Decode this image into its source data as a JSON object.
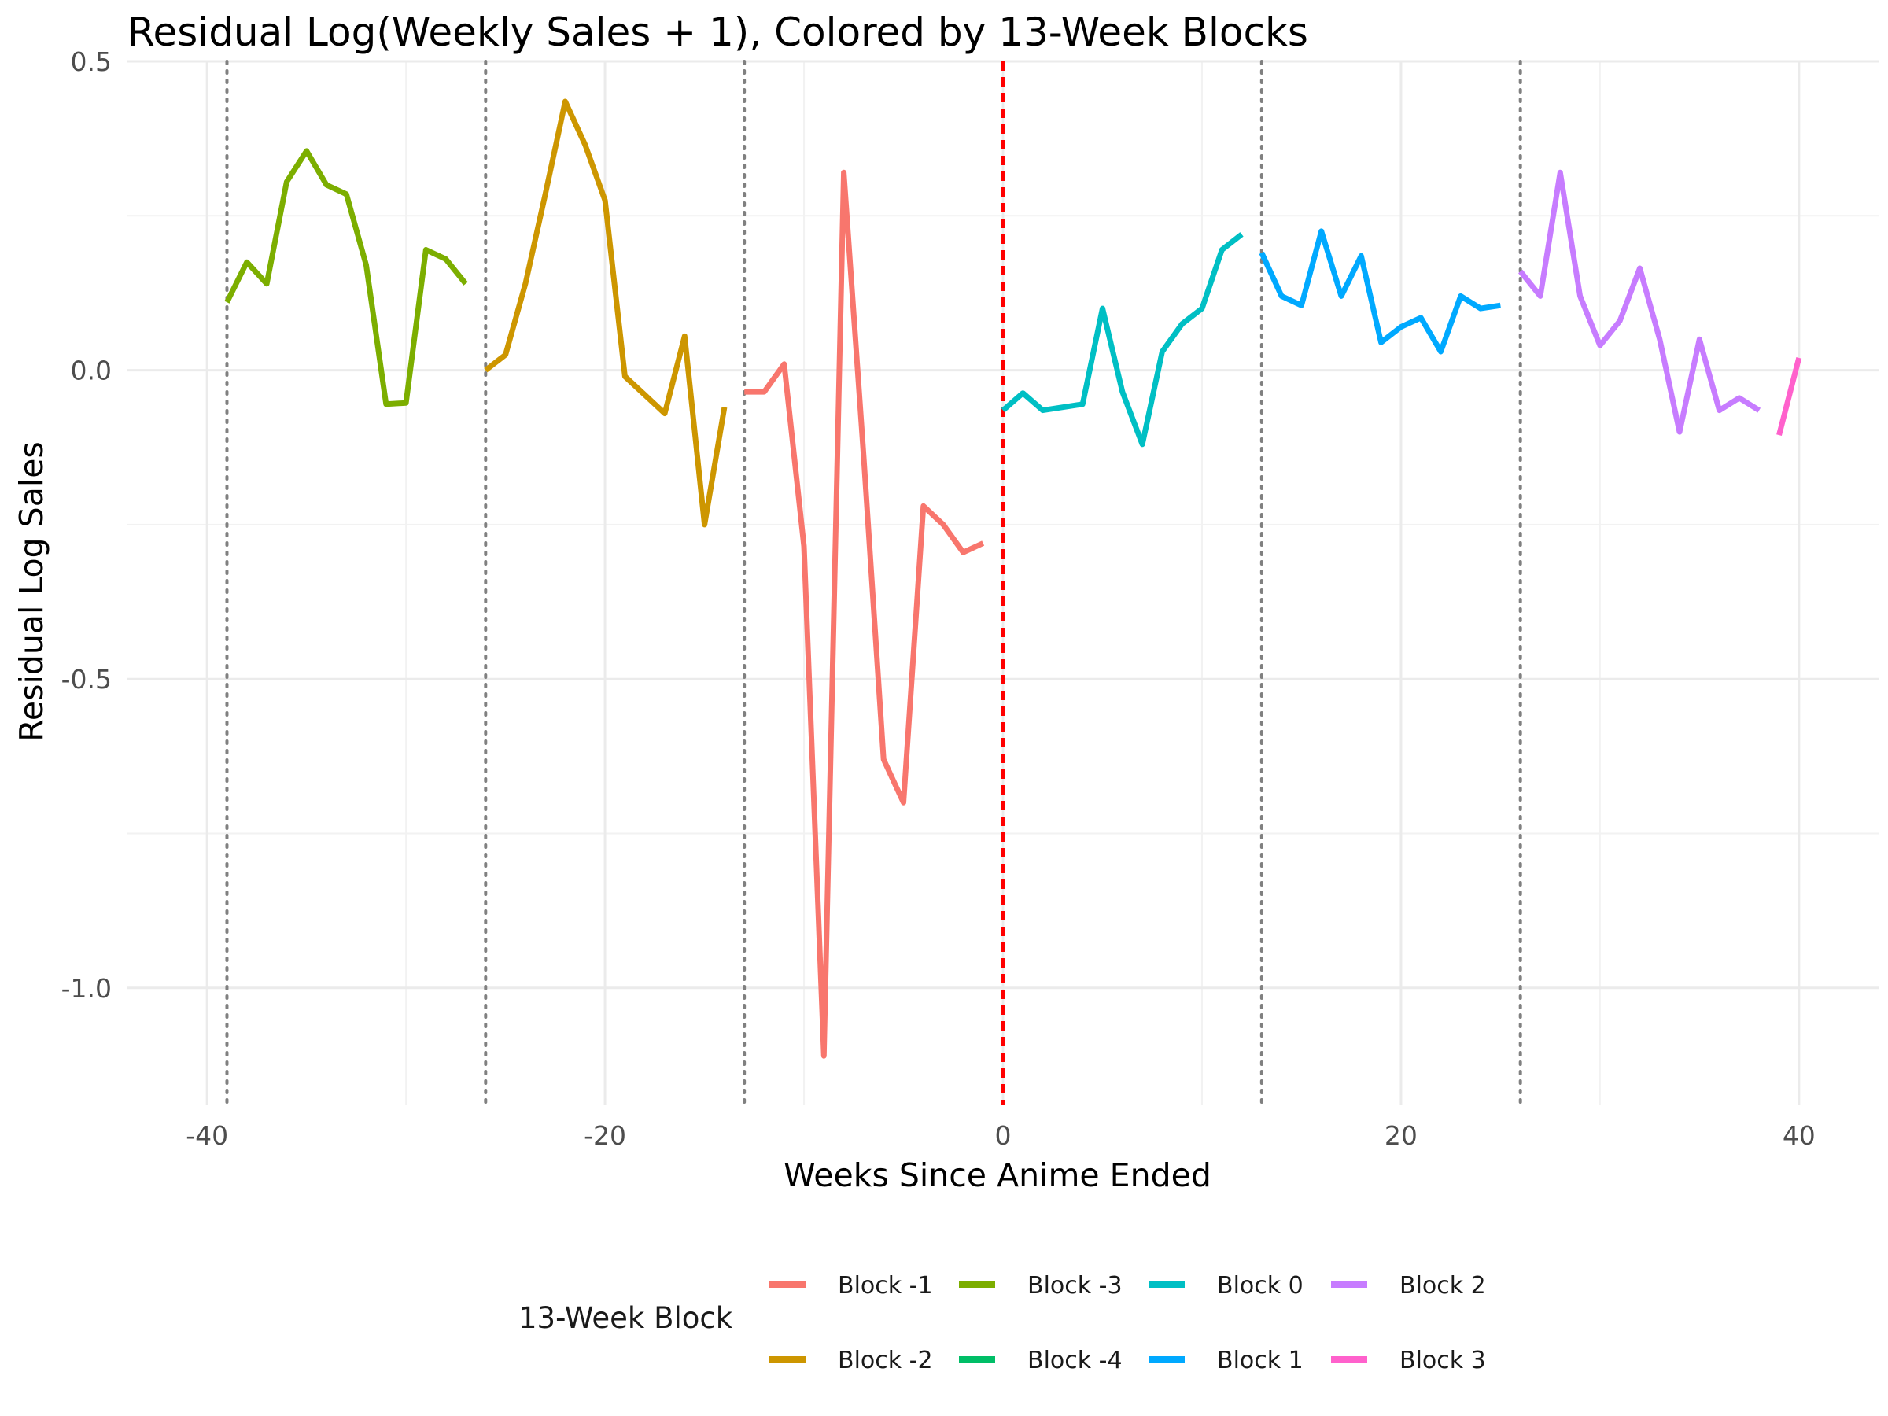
{
  "chart_data": {
    "type": "line",
    "title": "Residual Log(Weekly Sales + 1), Colored by 13-Week Blocks",
    "xlabel": "Weeks Since Anime Ended",
    "ylabel": "Residual Log Sales",
    "xlim": [
      -44,
      44
    ],
    "ylim": [
      -1.19,
      0.5
    ],
    "x_ticks": [
      -40,
      -20,
      0,
      20,
      40
    ],
    "x_tick_labels": [
      "-40",
      "-20",
      "0",
      "20",
      "40"
    ],
    "y_ticks": [
      0.5,
      0.0,
      -0.5,
      -1.0
    ],
    "y_tick_labels": [
      "0.5",
      "0.0",
      "-0.5",
      "-1.0"
    ],
    "grid": true,
    "block_boundaries": [
      -39,
      -26,
      -13,
      13,
      26
    ],
    "reference_line": 0,
    "legend": {
      "title": "13-Week Block",
      "position": "bottom",
      "order": [
        "Block -1",
        "Block -3",
        "Block 0",
        "Block 2",
        "Block -2",
        "Block -4",
        "Block 1",
        "Block 3"
      ]
    },
    "series": [
      {
        "name": "Block -3",
        "color": "#7CAE00",
        "x": [
          -39,
          -38,
          -37,
          -36,
          -35,
          -34,
          -33,
          -32,
          -31,
          -30,
          -29,
          -28,
          -27
        ],
        "y": [
          0.11,
          0.175,
          0.14,
          0.305,
          0.355,
          0.3,
          0.285,
          0.17,
          -0.055,
          -0.053,
          0.195,
          0.18,
          0.14
        ]
      },
      {
        "name": "Block -2",
        "color": "#CD9600",
        "x": [
          -26,
          -25,
          -24,
          -23,
          -22,
          -21,
          -20,
          -19,
          -18,
          -17,
          -16,
          -15,
          -14
        ],
        "y": [
          0.0,
          0.025,
          0.14,
          0.285,
          0.435,
          0.365,
          0.275,
          -0.01,
          -0.04,
          -0.07,
          0.055,
          -0.25,
          -0.06
        ]
      },
      {
        "name": "Block -1",
        "color": "#F8766D",
        "x": [
          -13,
          -12,
          -11,
          -10,
          -9,
          -8,
          -7,
          -6,
          -5,
          -4,
          -3,
          -2,
          -1
        ],
        "y": [
          -0.035,
          -0.035,
          0.01,
          -0.285,
          -1.11,
          0.32,
          -0.14,
          -0.63,
          -0.7,
          -0.22,
          -0.25,
          -0.295,
          -0.28
        ]
      },
      {
        "name": "Block -4",
        "color": "#00BE67",
        "x": [],
        "y": []
      },
      {
        "name": "Block 0",
        "color": "#00BFC4",
        "x": [
          0,
          1,
          2,
          3,
          4,
          5,
          6,
          7,
          8,
          9,
          10,
          11,
          12
        ],
        "y": [
          -0.065,
          -0.037,
          -0.065,
          -0.06,
          -0.055,
          0.1,
          -0.035,
          -0.12,
          0.03,
          0.075,
          0.1,
          0.195,
          0.22
        ]
      },
      {
        "name": "Block 1",
        "color": "#00A9FF",
        "x": [
          13,
          14,
          15,
          16,
          17,
          18,
          19,
          20,
          21,
          22,
          23,
          24,
          25
        ],
        "y": [
          0.19,
          0.12,
          0.105,
          0.225,
          0.12,
          0.185,
          0.045,
          0.07,
          0.085,
          0.03,
          0.12,
          0.1,
          0.105
        ]
      },
      {
        "name": "Block 2",
        "color": "#C77CFF",
        "x": [
          26,
          27,
          28,
          29,
          30,
          31,
          32,
          33,
          34,
          35,
          36,
          37,
          38
        ],
        "y": [
          0.16,
          0.12,
          0.32,
          0.12,
          0.04,
          0.08,
          0.165,
          0.05,
          -0.1,
          0.05,
          -0.065,
          -0.045,
          -0.065
        ]
      },
      {
        "name": "Block 3",
        "color": "#FF61CC",
        "x": [
          39,
          40
        ],
        "y": [
          -0.105,
          0.02
        ]
      }
    ]
  },
  "colors": {
    "block_line": "#808080",
    "reference_line": "#FF0000",
    "grid_major": "#EBEBEB",
    "grid_minor": "#F2F2F2"
  }
}
